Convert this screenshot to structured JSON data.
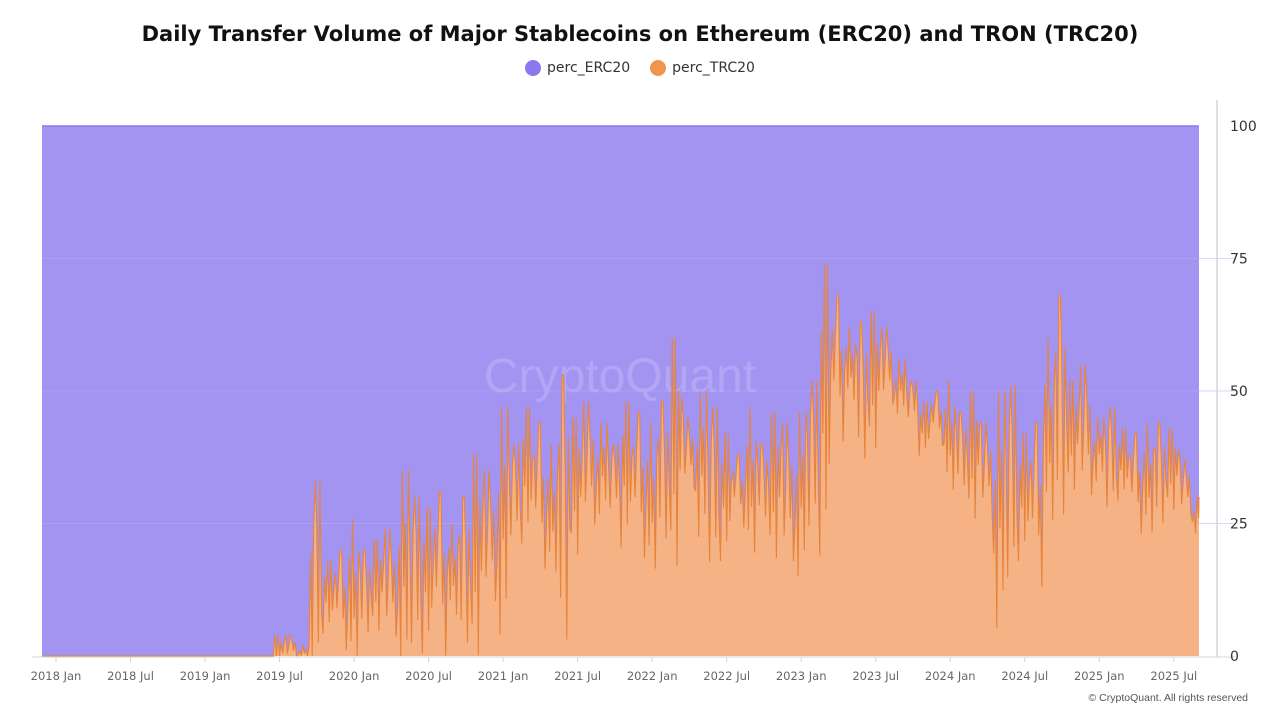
{
  "chart_data": {
    "type": "area",
    "stacked": true,
    "title": "Daily Transfer Volume of Major Stablecoins on Ethereum (ERC20) and TRON (TRC20)",
    "legend_position": "top",
    "xlabel": "",
    "ylabel": "",
    "ylim": [
      0,
      100
    ],
    "yticks": [
      "0",
      "25",
      "50",
      "75",
      "100"
    ],
    "xticks": [
      "2018 Jan",
      "2018 Jul",
      "2019 Jan",
      "2019 Jul",
      "2020 Jan",
      "2020 Jul",
      "2021 Jan",
      "2021 Jul",
      "2022 Jan",
      "2022 Jul",
      "2023 Jan",
      "2023 Jul",
      "2024 Jan",
      "2024 Jul",
      "2025 Jan",
      "2025 Jul"
    ],
    "x_start": "2018 Jan",
    "x_step": "month",
    "series": [
      {
        "name": "perc_ERC20",
        "color": "#8b78f0",
        "fill": "#a394f2",
        "note_values": "100 minus perc_TRC20"
      },
      {
        "name": "perc_TRC20",
        "color": "#e8833a",
        "fill": "#f5b385",
        "values": [
          0,
          0,
          0,
          0,
          0,
          0,
          0,
          0,
          0,
          0,
          0,
          0,
          0,
          0,
          0,
          0,
          0,
          0,
          0.5,
          1,
          0.5,
          12,
          10,
          9,
          10,
          11,
          12,
          10,
          13,
          14,
          12,
          13,
          15,
          14,
          16,
          18,
          22,
          30,
          32,
          28,
          26,
          24,
          30,
          32,
          34,
          33,
          32,
          30,
          28,
          33,
          35,
          36,
          34,
          30,
          28,
          30,
          31,
          32,
          30,
          26,
          28,
          36,
          42,
          52,
          54,
          48,
          50,
          52,
          50,
          48,
          42,
          44,
          40,
          38,
          36,
          32,
          24,
          30,
          28,
          26,
          40,
          44,
          40,
          38,
          38,
          36,
          35,
          31,
          32,
          33,
          34,
          30,
          26
        ],
        "peaks": [
          0,
          0,
          0,
          0,
          0,
          0,
          0,
          0,
          0,
          0,
          0,
          0,
          0,
          0,
          0,
          0,
          0,
          0,
          4,
          4,
          2,
          33,
          18,
          20,
          26,
          20,
          22,
          24,
          35,
          30,
          28,
          31,
          25,
          30,
          38,
          35,
          47,
          40,
          47,
          44,
          40,
          53,
          45,
          48,
          44,
          40,
          48,
          46,
          44,
          48,
          60,
          45,
          50,
          47,
          42,
          38,
          47,
          40,
          46,
          44,
          46,
          52,
          74,
          68,
          62,
          63,
          65,
          62,
          56,
          52,
          48,
          50,
          52,
          46,
          50,
          44,
          50,
          51,
          42,
          44,
          60,
          68,
          52,
          55,
          45,
          47,
          43,
          42,
          44,
          44,
          43,
          37,
          30
        ]
      }
    ]
  },
  "watermark": "CryptoQuant",
  "credit": "© CryptoQuant. All rights reserved"
}
